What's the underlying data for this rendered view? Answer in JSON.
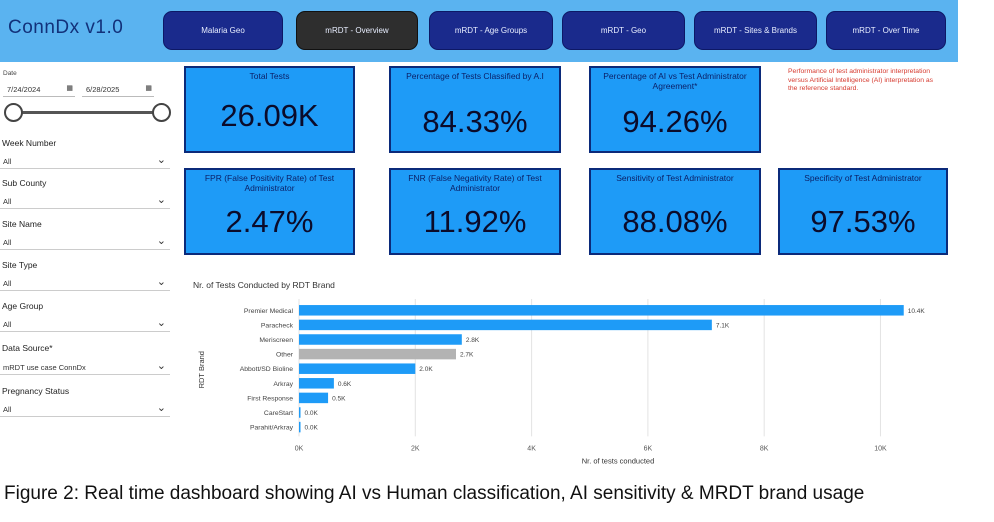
{
  "app_title": "ConnDx v1.0",
  "nav": [
    {
      "label": "Malaria Geo",
      "active": false
    },
    {
      "label": "mRDT - Overview",
      "active": true
    },
    {
      "label": "mRDT - Age Groups",
      "active": false
    },
    {
      "label": "mRDT - Geo",
      "active": false
    },
    {
      "label": "mRDT - Sites & Brands",
      "active": false
    },
    {
      "label": "mRDT - Over Time",
      "active": false
    }
  ],
  "filters": {
    "date_label": "Date",
    "date_start": "7/24/2024",
    "date_end": "6/28/2025",
    "items": [
      {
        "label": "Week Number",
        "value": "All"
      },
      {
        "label": "Sub County",
        "value": "All"
      },
      {
        "label": "Site Name",
        "value": "All"
      },
      {
        "label": "Site Type",
        "value": "All"
      },
      {
        "label": "Age Group",
        "value": "All"
      },
      {
        "label": "Data Source*",
        "value": "mRDT use case ConnDx"
      },
      {
        "label": "Pregnancy Status",
        "value": "All"
      }
    ]
  },
  "kpis": [
    {
      "title": "Total Tests",
      "value": "26.09K"
    },
    {
      "title": "Percentage of Tests Classified by A.I",
      "value": "84.33%"
    },
    {
      "title": "Percentage of AI vs Test Administrator Agreement*",
      "value": "94.26%"
    },
    {
      "title": "FPR (False Positivity Rate) of Test Administrator",
      "value": "2.47%"
    },
    {
      "title": "FNR (False Negativity Rate) of Test Administrator",
      "value": "11.92%"
    },
    {
      "title": "Sensitivity of Test Administrator",
      "value": "88.08%"
    },
    {
      "title": "Specificity of Test Administrator",
      "value": "97.53%"
    }
  ],
  "annotation": "Performance of test administrator interpretation versus Artificial Intelligence (AI) interpretation as the reference standard.",
  "chart_data": {
    "type": "bar",
    "orientation": "horizontal",
    "title": "Nr. of Tests Conducted by RDT Brand",
    "xlabel": "Nr. of tests conducted",
    "ylabel": "RDT Brand",
    "categories": [
      "Premier Medical",
      "Paracheck",
      "Meriscreen",
      "Other",
      "Abbott/SD Bioline",
      "Arkray",
      "First Response",
      "CareStart",
      "Parahit/Arkray"
    ],
    "values": [
      10400,
      7100,
      2800,
      2700,
      2000,
      600,
      500,
      0,
      0
    ],
    "data_labels": [
      "10.4K",
      "7.1K",
      "2.8K",
      "2.7K",
      "2.0K",
      "0.6K",
      "0.5K",
      "0.0K",
      "0.0K"
    ],
    "xticks": [
      "0K",
      "2K",
      "4K",
      "6K",
      "8K",
      "10K"
    ],
    "xlim": [
      0,
      10800
    ],
    "colors": {
      "default": "#1e9bf7",
      "other": "#b3b3b3"
    },
    "grid": true
  },
  "caption": "Figure 2: Real time dashboard showing AI vs Human classification, AI sensitivity & MRDT brand usage"
}
